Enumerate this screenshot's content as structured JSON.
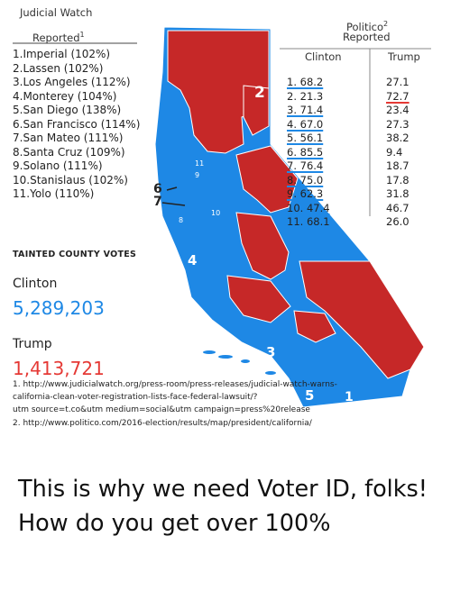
{
  "left_panel": {
    "title_line1": "Judicial Watch",
    "title_line2": "Reported",
    "title_sup": "1",
    "counties": [
      "1.Imperial (102%)",
      "2.Lassen (102%)",
      "3.Los Angeles (112%)",
      "4.Monterey (104%)",
      "5.San Diego (138%)",
      "6.San Francisco (114%)",
      "7.San Mateo (111%)",
      "8.Santa Cruz (109%)",
      "9.Solano (111%)",
      "10.Stanislaus (102%)",
      "11.Yolo (110%)"
    ],
    "tainted_label": "Tainted County Votes",
    "clinton_label": "Clinton",
    "clinton_votes": "5,289,203",
    "trump_label": "Trump",
    "trump_votes": "1,413,721"
  },
  "right_panel": {
    "title_line1": "Politico",
    "title_sup": "2",
    "title_line2": "Reported",
    "col_clinton": "Clinton",
    "col_trump": "Trump",
    "clinton_values": [
      "1. 68.2",
      "2. 21.3",
      "3. 71.4",
      "4. 67.0",
      "5. 56.1",
      "6. 85.5",
      "7. 76.4",
      "8. 75.0",
      "9. 62.3",
      "10. 47.4",
      "11. 68.1"
    ],
    "trump_values": [
      "27.1",
      "72.7",
      "23.4",
      "27.3",
      "38.2",
      "9.4",
      "18.7",
      "17.8",
      "31.8",
      "46.7",
      "26.0"
    ]
  },
  "map_labels": {
    "r2": "2",
    "r11": "11",
    "r9": "9",
    "r6": "6",
    "r7": "7",
    "r10": "10",
    "r8": "8",
    "r4": "4",
    "r3": "3",
    "r5": "5",
    "r1": "1"
  },
  "footnotes": [
    "1. http://www.judicialwatch.org/press-room/press-releases/judicial-watch-warns-",
    "california-clean-voter-registration-lists-face-federal-lawsuit/?",
    "utm source=t.co&utm medium=social&utm campaign=press%20release",
    "2. http://www.politico.com/2016-election/results/map/president/california/"
  ],
  "caption": "This is why we need Voter ID, folks! How do you get over 100%",
  "colors": {
    "blue": "#1e88e5",
    "red": "#c62828",
    "clinton_text": "#1e88e5",
    "trump_text": "#e53935"
  }
}
